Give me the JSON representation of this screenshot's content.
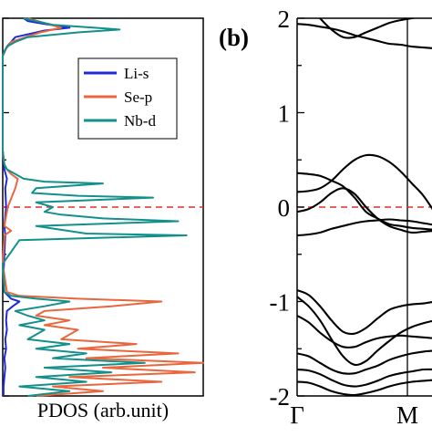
{
  "chart_data": [
    {
      "type": "line",
      "orientation": "vertical",
      "xlabel": "PDOS (arb.unit)",
      "ylabel": "",
      "ylim": [
        -2,
        2
      ],
      "fermi_level": 0,
      "legend_position": "top-right",
      "series": [
        {
          "name": "Li-s",
          "color": "#1e2bd6",
          "points": [
            [
              -2.0,
              0.01
            ],
            [
              -1.9,
              0.01
            ],
            [
              -1.8,
              0.02
            ],
            [
              -1.7,
              0.03
            ],
            [
              -1.6,
              0.02
            ],
            [
              -1.5,
              0.04
            ],
            [
              -1.4,
              0.03
            ],
            [
              -1.3,
              0.05
            ],
            [
              -1.2,
              0.04
            ],
            [
              -1.1,
              0.05
            ],
            [
              -1.05,
              0.12
            ],
            [
              -1.0,
              0.2
            ],
            [
              -0.97,
              0.1
            ],
            [
              -0.9,
              0.02
            ],
            [
              -0.7,
              0.01
            ],
            [
              -0.5,
              0.02
            ],
            [
              -0.3,
              0.03
            ],
            [
              -0.2,
              0.02
            ],
            [
              0.0,
              0.04
            ],
            [
              0.2,
              0.03
            ],
            [
              0.3,
              0.05
            ],
            [
              0.4,
              0.02
            ],
            [
              0.6,
              0.0
            ],
            [
              1.0,
              0.0
            ],
            [
              1.4,
              0.0
            ],
            [
              1.6,
              0.0
            ],
            [
              1.7,
              0.05
            ],
            [
              1.8,
              0.15
            ],
            [
              1.87,
              0.5
            ],
            [
              1.9,
              0.8
            ],
            [
              1.94,
              0.5
            ],
            [
              1.97,
              0.3
            ],
            [
              2.0,
              0.25
            ]
          ]
        },
        {
          "name": "Se-p",
          "color": "#e8673e",
          "points": [
            [
              -2.0,
              0.4
            ],
            [
              -1.95,
              1.2
            ],
            [
              -1.9,
              0.6
            ],
            [
              -1.85,
              1.9
            ],
            [
              -1.8,
              0.8
            ],
            [
              -1.75,
              2.3
            ],
            [
              -1.7,
              1.2
            ],
            [
              -1.65,
              2.4
            ],
            [
              -1.6,
              1.0
            ],
            [
              -1.55,
              2.1
            ],
            [
              -1.5,
              0.9
            ],
            [
              -1.45,
              1.6
            ],
            [
              -1.4,
              0.7
            ],
            [
              -1.3,
              0.9
            ],
            [
              -1.25,
              0.5
            ],
            [
              -1.2,
              0.8
            ],
            [
              -1.15,
              0.4
            ],
            [
              -1.1,
              0.5
            ],
            [
              -1.05,
              1.3
            ],
            [
              -1.0,
              1.9
            ],
            [
              -0.97,
              0.9
            ],
            [
              -0.94,
              0.2
            ],
            [
              -0.9,
              0.05
            ],
            [
              -0.6,
              0.0
            ],
            [
              -0.3,
              0.02
            ],
            [
              -0.25,
              0.1
            ],
            [
              -0.2,
              0.02
            ],
            [
              0.0,
              0.06
            ],
            [
              0.2,
              0.15
            ],
            [
              0.3,
              0.18
            ],
            [
              0.35,
              0.1
            ],
            [
              0.4,
              0.05
            ],
            [
              0.45,
              0.02
            ],
            [
              0.6,
              0.0
            ],
            [
              1.0,
              0.0
            ],
            [
              1.6,
              0.0
            ],
            [
              1.65,
              0.02
            ],
            [
              1.75,
              0.1
            ],
            [
              1.85,
              0.45
            ],
            [
              1.9,
              0.7
            ],
            [
              1.95,
              0.5
            ],
            [
              2.0,
              0.3
            ]
          ]
        },
        {
          "name": "Nb-d",
          "color": "#13908a",
          "points": [
            [
              -2.0,
              0.3
            ],
            [
              -1.95,
              0.8
            ],
            [
              -1.9,
              0.2
            ],
            [
              -1.85,
              1.0
            ],
            [
              -1.8,
              0.4
            ],
            [
              -1.75,
              1.3
            ],
            [
              -1.7,
              0.5
            ],
            [
              -1.65,
              1.7
            ],
            [
              -1.6,
              0.6
            ],
            [
              -1.55,
              1.0
            ],
            [
              -1.5,
              0.4
            ],
            [
              -1.45,
              0.8
            ],
            [
              -1.4,
              0.3
            ],
            [
              -1.3,
              0.5
            ],
            [
              -1.25,
              0.2
            ],
            [
              -1.2,
              0.5
            ],
            [
              -1.15,
              0.3
            ],
            [
              -1.1,
              0.15
            ],
            [
              -1.05,
              0.5
            ],
            [
              -1.0,
              0.8
            ],
            [
              -0.97,
              0.4
            ],
            [
              -0.94,
              0.1
            ],
            [
              -0.9,
              0.02
            ],
            [
              -0.6,
              0.0
            ],
            [
              -0.35,
              0.2
            ],
            [
              -0.3,
              2.2
            ],
            [
              -0.28,
              1.0
            ],
            [
              -0.2,
              0.4
            ],
            [
              -0.15,
              2.1
            ],
            [
              -0.12,
              1.2
            ],
            [
              -0.08,
              0.7
            ],
            [
              -0.05,
              0.5
            ],
            [
              0.0,
              0.6
            ],
            [
              0.05,
              0.4
            ],
            [
              0.1,
              1.8
            ],
            [
              0.12,
              0.9
            ],
            [
              0.15,
              0.35
            ],
            [
              0.2,
              0.4
            ],
            [
              0.25,
              1.2
            ],
            [
              0.27,
              0.5
            ],
            [
              0.3,
              0.25
            ],
            [
              0.35,
              0.15
            ],
            [
              0.4,
              0.05
            ],
            [
              0.45,
              0.02
            ],
            [
              0.6,
              0.0
            ],
            [
              1.0,
              0.0
            ],
            [
              1.6,
              0.0
            ],
            [
              1.65,
              0.02
            ],
            [
              1.7,
              0.05
            ],
            [
              1.75,
              0.15
            ],
            [
              1.8,
              0.3
            ],
            [
              1.85,
              0.9
            ],
            [
              1.88,
              1.4
            ],
            [
              1.9,
              1.1
            ],
            [
              1.93,
              0.6
            ],
            [
              1.95,
              0.5
            ],
            [
              1.97,
              0.4
            ],
            [
              2.0,
              0.25
            ]
          ]
        }
      ]
    },
    {
      "type": "line",
      "panel_label": "(b)",
      "xlabel": "",
      "ylabel": "",
      "ylim": [
        -2,
        2
      ],
      "yticks": [
        "2",
        "1",
        "0",
        "-1",
        "-2"
      ],
      "xticks": [
        "Γ",
        "M"
      ],
      "fermi_level": 0,
      "series_color": "#000000",
      "k": [
        0,
        0.25,
        0.5,
        0.75,
        1.0,
        1.25,
        1.5,
        1.75,
        2.0,
        2.25,
        2.5,
        2.75,
        3.0
      ],
      "bands": [
        [
          1.94,
          1.93,
          1.91,
          1.89,
          1.86,
          1.82,
          1.79,
          1.76,
          1.73,
          1.72,
          1.7,
          1.69,
          1.68
        ],
        [
          2.3,
          2.15,
          2.0,
          1.88,
          1.8,
          1.8,
          1.85,
          1.9,
          1.95,
          1.98,
          2.0,
          2.02,
          2.03
        ],
        [
          0.36,
          0.35,
          0.33,
          0.28,
          0.22,
          0.1,
          -0.05,
          -0.12,
          -0.18,
          -0.2,
          -0.22,
          -0.23,
          -0.24
        ],
        [
          0.16,
          0.17,
          0.2,
          0.28,
          0.4,
          0.5,
          0.55,
          0.54,
          0.48,
          0.38,
          0.25,
          0.12,
          -0.06
        ],
        [
          -0.05,
          -0.02,
          0.05,
          0.15,
          0.2,
          0.14,
          0.0,
          -0.12,
          -0.2,
          -0.24,
          -0.27,
          -0.26,
          -0.25
        ],
        [
          -0.3,
          -0.29,
          -0.27,
          -0.23,
          -0.2,
          -0.17,
          -0.15,
          -0.14,
          -0.13,
          -0.14,
          -0.15,
          -0.17,
          -0.19
        ],
        [
          -0.88,
          -0.93,
          -1.05,
          -1.2,
          -1.32,
          -1.34,
          -1.28,
          -1.18,
          -1.09,
          -1.05,
          -1.03,
          -1.02,
          -1.0
        ],
        [
          -0.95,
          -1.05,
          -1.2,
          -1.4,
          -1.58,
          -1.67,
          -1.63,
          -1.52,
          -1.42,
          -1.33,
          -1.27,
          -1.23,
          -1.2
        ],
        [
          -1.15,
          -1.22,
          -1.33,
          -1.42,
          -1.48,
          -1.48,
          -1.43,
          -1.39,
          -1.37,
          -1.36,
          -1.37,
          -1.38,
          -1.39
        ],
        [
          -1.55,
          -1.58,
          -1.65,
          -1.72,
          -1.76,
          -1.76,
          -1.72,
          -1.68,
          -1.62,
          -1.58,
          -1.55,
          -1.53,
          -1.52
        ],
        [
          -1.72,
          -1.73,
          -1.77,
          -1.83,
          -1.88,
          -1.9,
          -1.88,
          -1.84,
          -1.79,
          -1.76,
          -1.74,
          -1.72,
          -1.72
        ],
        [
          -1.85,
          -1.86,
          -1.9,
          -1.95,
          -1.98,
          -1.99,
          -1.97,
          -1.94,
          -1.9,
          -1.87,
          -1.85,
          -1.84,
          -1.83
        ]
      ]
    }
  ]
}
